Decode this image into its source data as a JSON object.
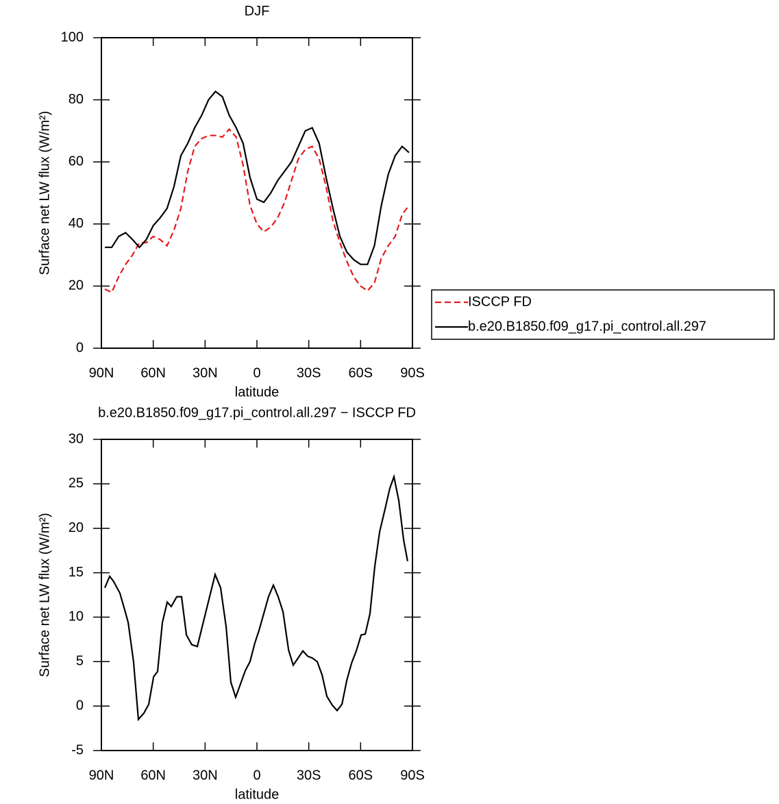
{
  "chart_data": [
    {
      "type": "line",
      "title": "DJF",
      "xlabel": "latitude",
      "ylabel": "Surface net LW flux (W/m²)",
      "x": [
        88,
        84,
        80,
        76,
        72,
        68,
        64,
        60,
        56,
        52,
        48,
        44,
        40,
        36,
        32,
        28,
        24,
        20,
        16,
        12,
        8,
        4,
        0,
        -4,
        -8,
        -12,
        -16,
        -20,
        -24,
        -28,
        -32,
        -36,
        -40,
        -44,
        -48,
        -52,
        -56,
        -60,
        -64,
        -68,
        -72,
        -76,
        -80,
        -84,
        -88
      ],
      "series": [
        {
          "name": "ISCCP FD",
          "color": "#e41a1c",
          "style": "dashed",
          "values": [
            19,
            18,
            23,
            27,
            30,
            34,
            34,
            36,
            35,
            33,
            38,
            45,
            57,
            65,
            67.5,
            68.5,
            68.5,
            68,
            70.5,
            68,
            59,
            46,
            40,
            37.5,
            39,
            42,
            47,
            54,
            61,
            64,
            65,
            61,
            52,
            41,
            34,
            28,
            23,
            20,
            18.5,
            21,
            29,
            33,
            36,
            43,
            46
          ]
        },
        {
          "name": "b.e20.B1850.f09_g17.pi_control.all.297",
          "color": "#000000",
          "style": "solid",
          "values": [
            32.5,
            32.5,
            36,
            37.2,
            35,
            32.5,
            35,
            39.5,
            42,
            45,
            52,
            62,
            66,
            71,
            75,
            80,
            82.7,
            81,
            75,
            71,
            66,
            55,
            48,
            47,
            50,
            54,
            57,
            60,
            65,
            70,
            71,
            66,
            55,
            45,
            36,
            31,
            28.5,
            27,
            27,
            33,
            46,
            56,
            62,
            65,
            63
          ]
        }
      ],
      "xlim": [
        90,
        -90
      ],
      "ylim": [
        0,
        100
      ],
      "xticks": [
        {
          "value": 90,
          "label": "90N"
        },
        {
          "value": 60,
          "label": "60N"
        },
        {
          "value": 30,
          "label": "30N"
        },
        0,
        {
          "value": -30,
          "label": "30S"
        },
        {
          "value": -60,
          "label": "60S"
        },
        {
          "value": -90,
          "label": "90S"
        }
      ],
      "yticks": [
        0,
        20,
        40,
        60,
        80,
        100
      ],
      "legend": "right"
    },
    {
      "type": "line",
      "title": "b.e20.B1850.f09_g17.pi_control.all.297 − ISCCP FD",
      "xlabel": "latitude",
      "ylabel": "Surface net LW flux (W/m²)",
      "x": [
        88,
        85.2,
        82.9,
        79.3,
        76.5,
        74.5,
        71.4,
        68.6,
        65.4,
        62.6,
        59.8,
        57.5,
        54.7,
        51.9,
        49.6,
        46.4,
        43.6,
        40.8,
        37.7,
        34.5,
        29.3,
        24.2,
        21,
        17.8,
        15.1,
        12.3,
        6.7,
        4,
        1.2,
        -1.2,
        -4.4,
        -6.7,
        -9.5,
        -12.3,
        -15.1,
        -18.3,
        -21,
        -23.8,
        -26.6,
        -29.4,
        -32.1,
        -34.9,
        -37.7,
        -40.5,
        -43.6,
        -46.4,
        -49.2,
        -52,
        -54.7,
        -57.5,
        -60.3,
        -62.7,
        -65.4,
        -68.2,
        -71,
        -74.2,
        -76.9,
        -79.3,
        -82.1,
        -84.9,
        -87.2
      ],
      "values": [
        13.3,
        14.6,
        14,
        12.7,
        10.8,
        9.4,
        5,
        -1.5,
        -0.8,
        0.2,
        3.3,
        3.9,
        9.4,
        11.7,
        11.2,
        12.3,
        12.3,
        8,
        6.9,
        6.7,
        10.8,
        14.8,
        13.3,
        8.9,
        2.7,
        1,
        4,
        5,
        7.1,
        8.5,
        10.7,
        12.3,
        13.6,
        12.3,
        10.6,
        6.3,
        4.6,
        5.4,
        6.2,
        5.6,
        5.4,
        5,
        3.5,
        1.1,
        0.1,
        -0.5,
        0.2,
        2.9,
        4.8,
        6.2,
        8,
        8.1,
        10.4,
        15.7,
        19.6,
        22.2,
        24.5,
        25.8,
        23.1,
        18.7,
        16.3
      ],
      "color": "#000000",
      "xlim": [
        90,
        -90
      ],
      "ylim": [
        -5,
        30
      ],
      "xticks": [
        {
          "value": 90,
          "label": "90N"
        },
        {
          "value": 60,
          "label": "60N"
        },
        {
          "value": 30,
          "label": "30N"
        },
        0,
        {
          "value": -30,
          "label": "30S"
        },
        {
          "value": -60,
          "label": "60S"
        },
        {
          "value": -90,
          "label": "90S"
        }
      ],
      "yticks": [
        -5,
        0,
        5,
        10,
        15,
        20,
        25,
        30
      ]
    }
  ]
}
